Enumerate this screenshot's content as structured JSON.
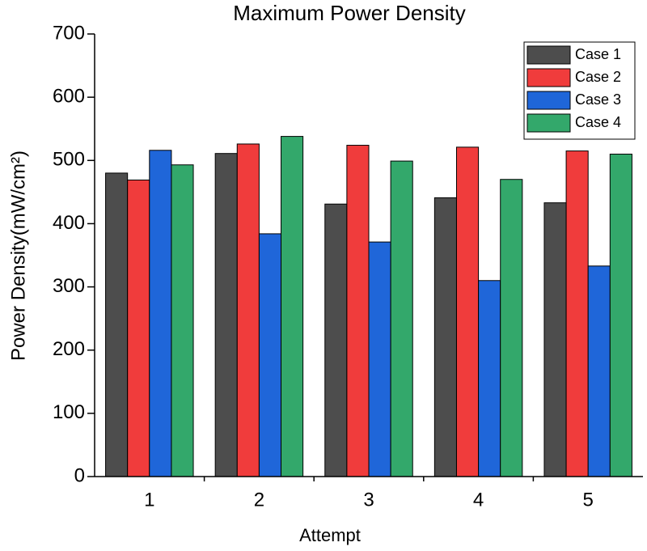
{
  "chart_data": {
    "type": "bar",
    "title": "Maximum Power Density",
    "x_label": "Attempt",
    "y_label": "Power Density(mW/cm²)",
    "categories": [
      "1",
      "2",
      "3",
      "4",
      "5"
    ],
    "series": [
      {
        "name": "Case 1",
        "color": "#4d4d4d",
        "values": [
          480,
          511,
          431,
          441,
          433
        ]
      },
      {
        "name": "Case 2",
        "color": "#f03c3c",
        "values": [
          469,
          526,
          524,
          521,
          515
        ]
      },
      {
        "name": "Case 3",
        "color": "#1f66d9",
        "values": [
          516,
          384,
          371,
          310,
          333
        ]
      },
      {
        "name": "Case 4",
        "color": "#33a86b",
        "values": [
          493,
          538,
          499,
          470,
          510
        ]
      }
    ],
    "ylim": [
      0,
      700
    ],
    "yticks": [
      0,
      100,
      200,
      300,
      400,
      500,
      600,
      700
    ],
    "legend": "upper-right"
  }
}
